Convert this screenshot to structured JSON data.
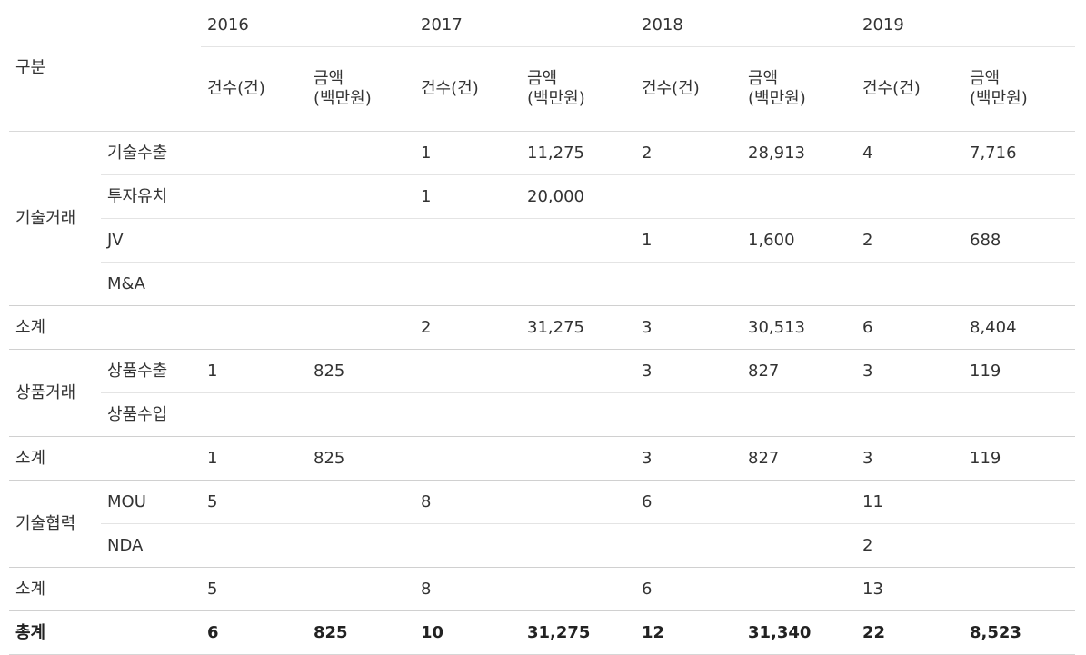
{
  "table": {
    "header": {
      "category_label": "구분",
      "years": [
        "2016",
        "2017",
        "2018",
        "2019"
      ],
      "count_label": "건수(건)",
      "amount_label_line1": "금액",
      "amount_label_line2": "(백만원)"
    },
    "groups": {
      "tech_trade": {
        "label": "기술거래",
        "rows": [
          {
            "label": "기술수출",
            "v": [
              "",
              "",
              "1",
              "11,275",
              "2",
              "28,913",
              "4",
              "7,716"
            ]
          },
          {
            "label": "투자유치",
            "v": [
              "",
              "",
              "1",
              "20,000",
              "",
              "",
              "",
              ""
            ]
          },
          {
            "label": "JV",
            "v": [
              "",
              "",
              "",
              "",
              "1",
              "1,600",
              "2",
              "688"
            ]
          },
          {
            "label": "M&A",
            "v": [
              "",
              "",
              "",
              "",
              "",
              "",
              "",
              ""
            ]
          }
        ],
        "subtotal": {
          "label": "소계",
          "v": [
            "",
            "",
            "2",
            "31,275",
            "3",
            "30,513",
            "6",
            "8,404"
          ]
        }
      },
      "product_trade": {
        "label": "상품거래",
        "rows": [
          {
            "label": "상품수출",
            "v": [
              "1",
              "825",
              "",
              "",
              "3",
              "827",
              "3",
              "119"
            ]
          },
          {
            "label": "상품수입",
            "v": [
              "",
              "",
              "",
              "",
              "",
              "",
              "",
              ""
            ]
          }
        ],
        "subtotal": {
          "label": "소계",
          "v": [
            "1",
            "825",
            "",
            "",
            "3",
            "827",
            "3",
            "119"
          ]
        }
      },
      "tech_coop": {
        "label": "기술협력",
        "rows": [
          {
            "label": "MOU",
            "v": [
              "5",
              "",
              "8",
              "",
              "6",
              "",
              "11",
              ""
            ]
          },
          {
            "label": "NDA",
            "v": [
              "",
              "",
              "",
              "",
              "",
              "",
              "2",
              ""
            ]
          }
        ],
        "subtotal": {
          "label": "소계",
          "v": [
            "5",
            "",
            "8",
            "",
            "6",
            "",
            "13",
            ""
          ]
        }
      }
    },
    "total": {
      "label": "총계",
      "v": [
        "6",
        "825",
        "10",
        "31,275",
        "12",
        "31,340",
        "22",
        "8,523"
      ]
    }
  }
}
